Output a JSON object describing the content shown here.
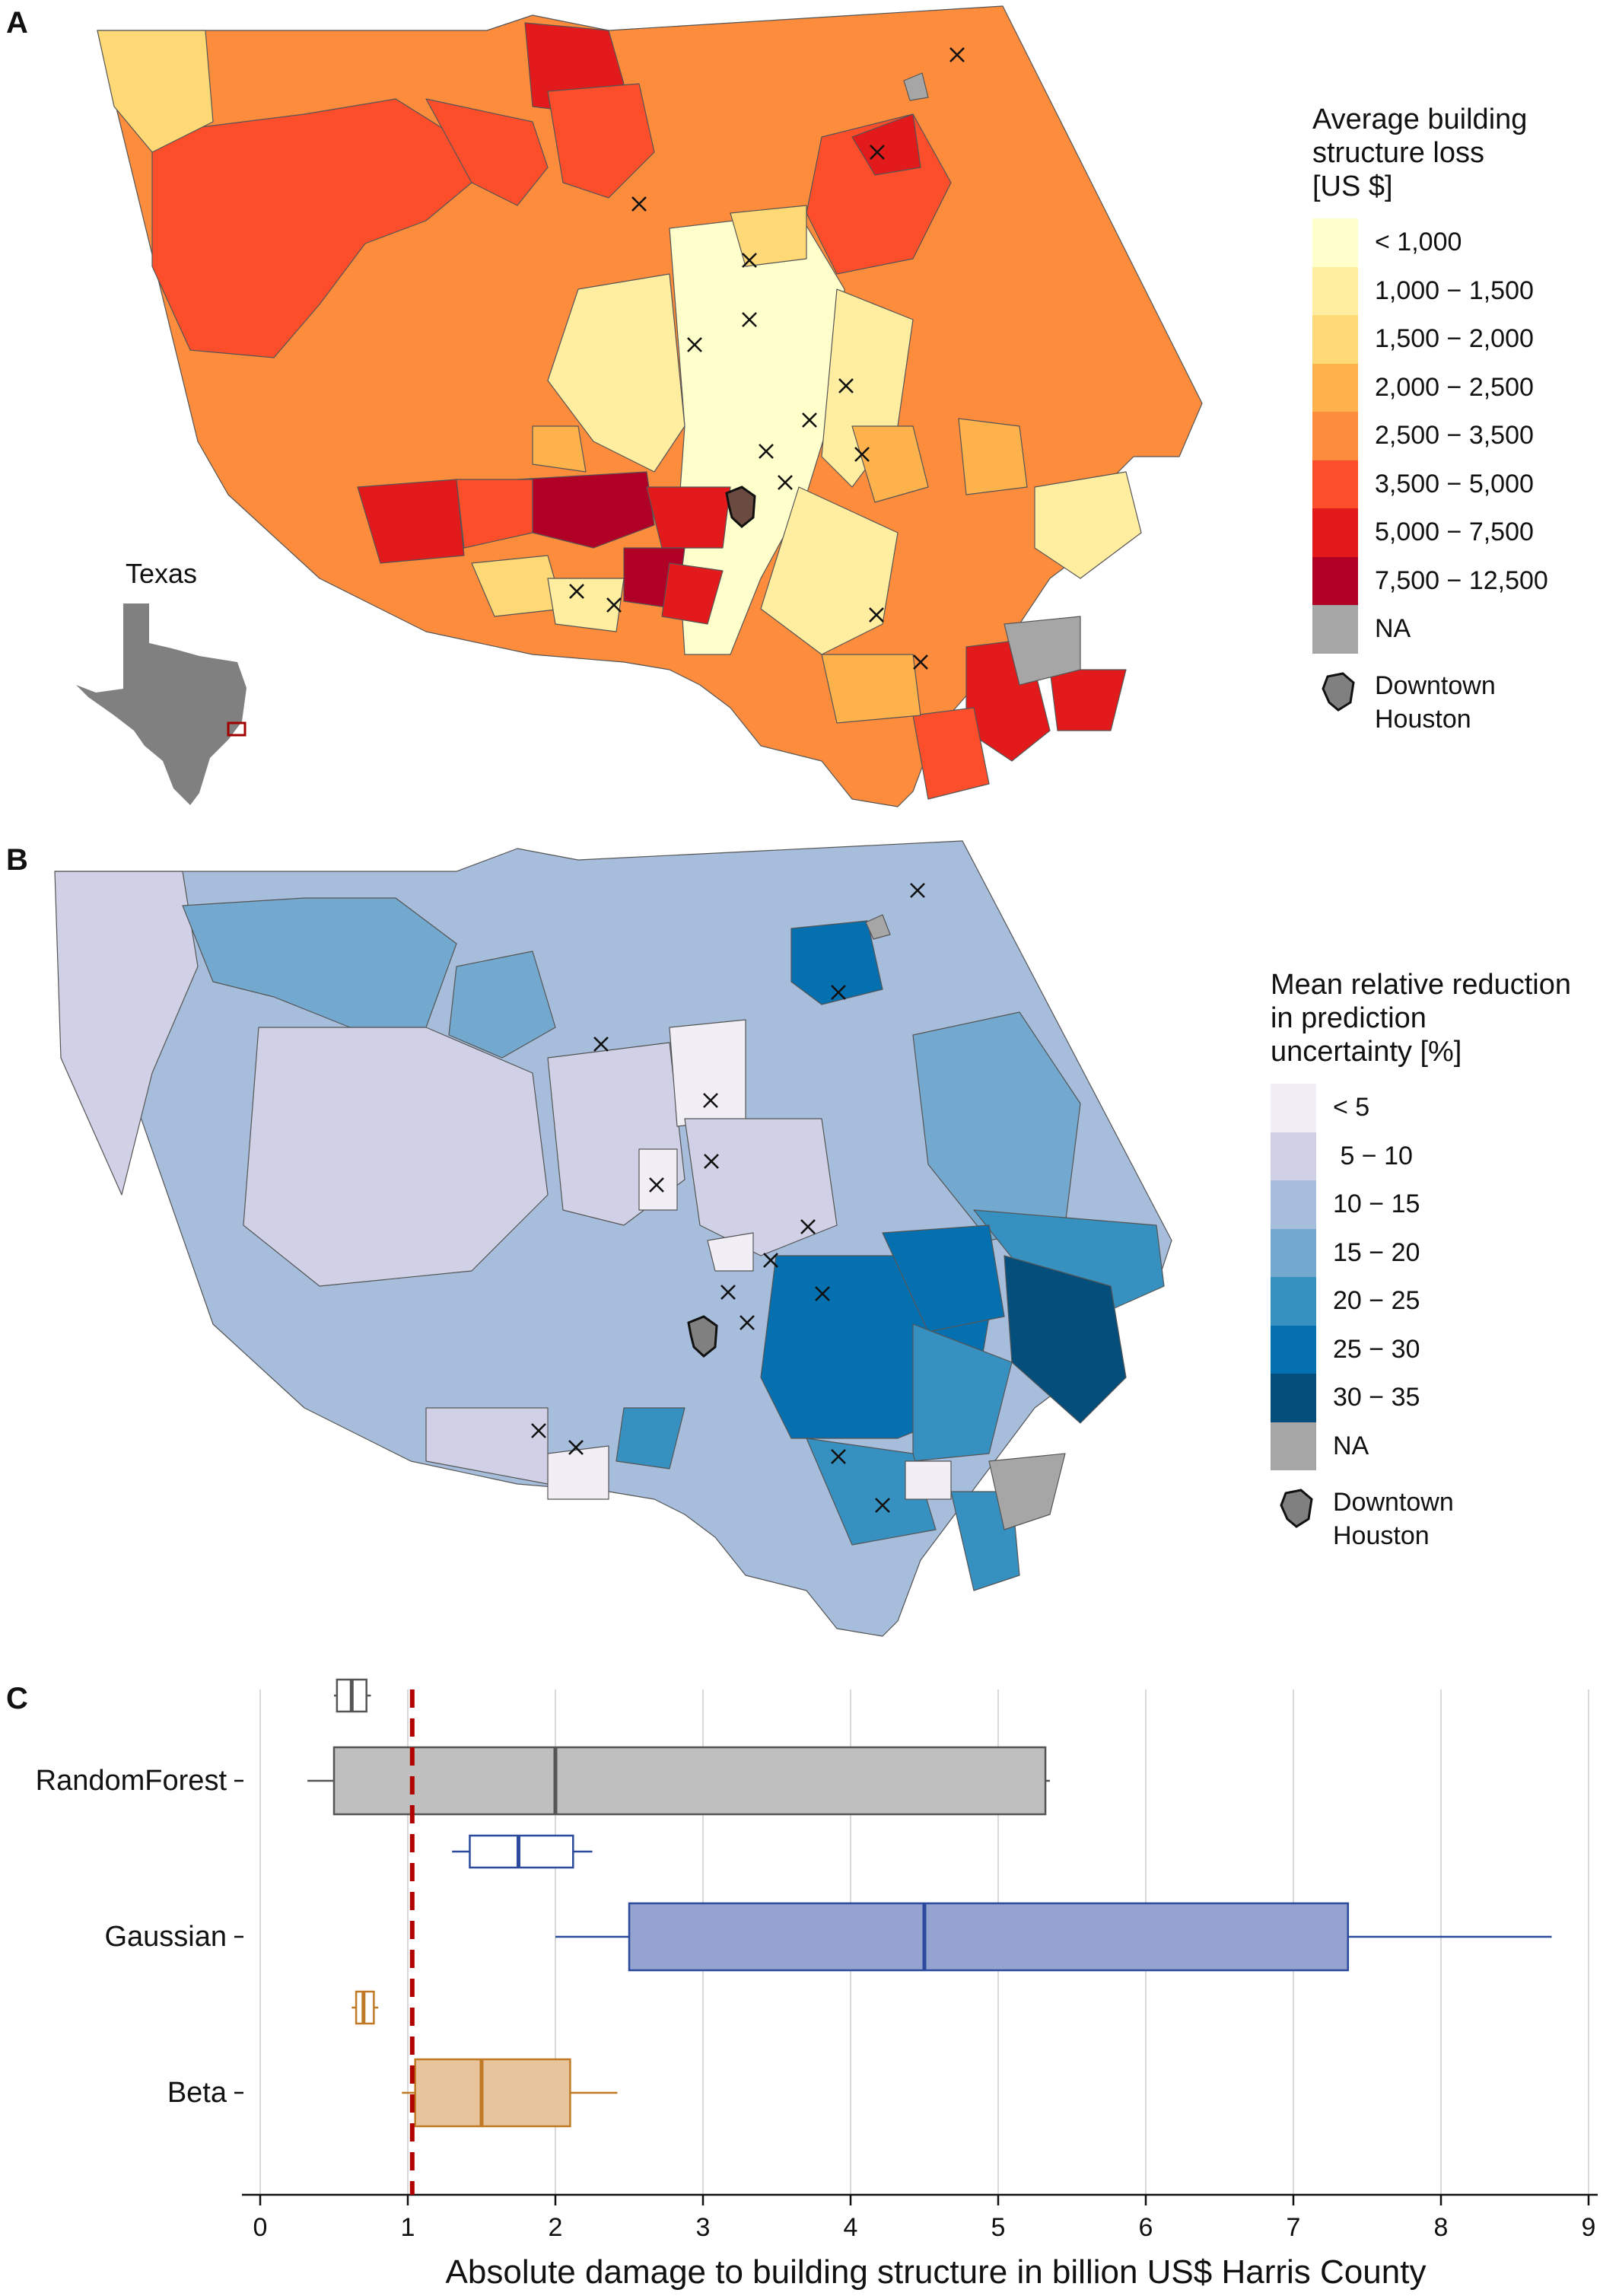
{
  "panels": {
    "a": {
      "letter": "A",
      "inset_label": "Texas",
      "legend": {
        "title": "Average building\nstructure loss\n[US $]",
        "items": [
          {
            "label": "< 1,000",
            "color": "#ffffcc"
          },
          {
            "label": "1,000 − 1,500",
            "color": "#ffeda0"
          },
          {
            "label": "1,500 − 2,000",
            "color": "#fed976"
          },
          {
            "label": "2,000 − 2,500",
            "color": "#feb24c"
          },
          {
            "label": "2,500 − 3,500",
            "color": "#fd8d3c"
          },
          {
            "label": "3,500 − 5,000",
            "color": "#fc4e2a"
          },
          {
            "label": "5,000 − 7,500",
            "color": "#e31a1c"
          },
          {
            "label": "7,500 − 12,500",
            "color": "#b10026"
          },
          {
            "label": "NA",
            "color": "#a6a6a6"
          }
        ],
        "downtown_label": "Downtown\nHouston"
      }
    },
    "b": {
      "letter": "B",
      "legend": {
        "title": "Mean relative reduction\nin prediction\nuncertainty [%]",
        "items": [
          {
            "label": "< 5",
            "color": "#f1eef6"
          },
          {
            "label": " 5 − 10",
            "color": "#d0d1e6"
          },
          {
            "label": "10 − 15",
            "color": "#a6bddb"
          },
          {
            "label": "15 − 20",
            "color": "#74a9cf"
          },
          {
            "label": "20 − 25",
            "color": "#3690c0"
          },
          {
            "label": "25 − 30",
            "color": "#0570b0"
          },
          {
            "label": "30 − 35",
            "color": "#034e7b"
          },
          {
            "label": "NA",
            "color": "#a6a6a6"
          }
        ],
        "downtown_label": "Downtown\nHouston"
      }
    },
    "c": {
      "letter": "C"
    }
  },
  "chart_data": {
    "type": "boxplot",
    "xlabel": "Absolute damage to building structure in billion US$ Harris County",
    "xlim": [
      0,
      9
    ],
    "x_ticks": [
      0,
      1,
      2,
      3,
      4,
      5,
      6,
      7,
      8,
      9
    ],
    "reference_line": {
      "x": 1.03,
      "color": "#b00000",
      "style": "dashed"
    },
    "grid": "vertical",
    "categories": [
      "RandomForest",
      "Gaussian",
      "Beta"
    ],
    "series": [
      {
        "category": "RandomForest",
        "kind": "small",
        "whisker_low": 0.5,
        "q1": 0.52,
        "median": 0.62,
        "q3": 0.72,
        "whisker_high": 0.75,
        "color": "#555555",
        "fill": "#ffffff"
      },
      {
        "category": "RandomForest",
        "kind": "large",
        "whisker_low": 0.32,
        "q1": 0.5,
        "median": 2.0,
        "q3": 5.32,
        "whisker_high": 5.35,
        "color": "#555555",
        "fill": "#bfbfbf"
      },
      {
        "category": "Gaussian",
        "kind": "small",
        "whisker_low": 1.3,
        "q1": 1.42,
        "median": 1.75,
        "q3": 2.12,
        "whisker_high": 2.25,
        "color": "#2b4a9c",
        "fill": "#ffffff"
      },
      {
        "category": "Gaussian",
        "kind": "large",
        "whisker_low": 2.0,
        "q1": 2.5,
        "median": 4.5,
        "q3": 7.37,
        "whisker_high": 8.75,
        "color": "#2b4a9c",
        "fill": "#95a3d1"
      },
      {
        "category": "Beta",
        "kind": "small",
        "whisker_low": 0.62,
        "q1": 0.65,
        "median": 0.7,
        "q3": 0.77,
        "whisker_high": 0.8,
        "color": "#c07a26",
        "fill": "#ffffff"
      },
      {
        "category": "Beta",
        "kind": "large",
        "whisker_low": 0.96,
        "q1": 1.05,
        "median": 1.5,
        "q3": 2.1,
        "whisker_high": 2.42,
        "color": "#c07a26",
        "fill": "#e8c49c"
      }
    ]
  }
}
